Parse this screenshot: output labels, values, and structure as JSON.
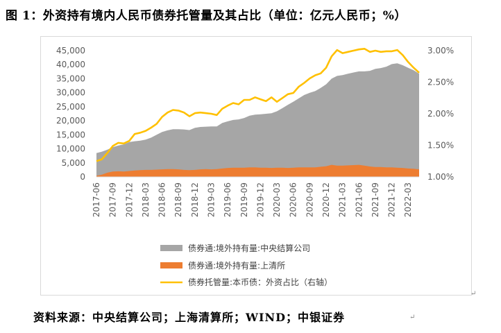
{
  "figure": {
    "title": "图 1：外资持有境内人民币债券托管量及其占比（单位：亿元人民币；%）",
    "source": "资料来源：中央结算公司；上海清算所；WIND；中银证券"
  },
  "chart_data": {
    "type": "area",
    "title": "",
    "xlabel": "",
    "ylabel": "",
    "ylim": [
      0,
      45000
    ],
    "y2lim": [
      0.01,
      0.03
    ],
    "grid": false,
    "legend_position": "bottom",
    "y_ticks": [
      "0",
      "5,000",
      "10,000",
      "15,000",
      "20,000",
      "25,000",
      "30,000",
      "35,000",
      "40,000",
      "45,000"
    ],
    "y2_ticks": [
      "1.00%",
      "1.50%",
      "2.00%",
      "2.50%",
      "3.00%"
    ],
    "x_ticks": [
      "2017-06",
      "2017-09",
      "2017-12",
      "2018-03",
      "2018-06",
      "2018-09",
      "2018-12",
      "2019-03",
      "2019-06",
      "2019-09",
      "2019-12",
      "2020-03",
      "2020-06",
      "2020-09",
      "2020-12",
      "2021-03",
      "2021-06",
      "2021-09",
      "2021-12",
      "2022-03"
    ],
    "x": [
      "2017-06",
      "2017-07",
      "2017-08",
      "2017-09",
      "2017-10",
      "2017-11",
      "2017-12",
      "2018-01",
      "2018-02",
      "2018-03",
      "2018-04",
      "2018-05",
      "2018-06",
      "2018-07",
      "2018-08",
      "2018-09",
      "2018-10",
      "2018-11",
      "2018-12",
      "2019-01",
      "2019-02",
      "2019-03",
      "2019-04",
      "2019-05",
      "2019-06",
      "2019-07",
      "2019-08",
      "2019-09",
      "2019-10",
      "2019-11",
      "2019-12",
      "2020-01",
      "2020-02",
      "2020-03",
      "2020-04",
      "2020-05",
      "2020-06",
      "2020-07",
      "2020-08",
      "2020-09",
      "2020-10",
      "2020-11",
      "2020-12",
      "2021-01",
      "2021-02",
      "2021-03",
      "2021-04",
      "2021-05",
      "2021-06",
      "2021-07",
      "2021-08",
      "2021-09",
      "2021-10",
      "2021-11",
      "2021-12",
      "2022-01",
      "2022-02",
      "2022-03",
      "2022-04",
      "2022-05"
    ],
    "series": [
      {
        "name": "债券通:境外持有量:中央结算公司",
        "type": "area",
        "color": "#a6a6a6",
        "values": [
          8500,
          9000,
          9700,
          10600,
          11200,
          11600,
          12400,
          12700,
          12900,
          13300,
          14000,
          15000,
          16000,
          16600,
          17000,
          17000,
          16900,
          16700,
          17500,
          17800,
          17900,
          18000,
          18000,
          19200,
          19800,
          20300,
          20500,
          21000,
          21800,
          22200,
          22300,
          22500,
          22700,
          23400,
          24500,
          25700,
          26800,
          28000,
          29200,
          30000,
          30600,
          31700,
          33000,
          35000,
          36000,
          36300,
          36800,
          37200,
          37600,
          37600,
          37800,
          38500,
          38800,
          39300,
          40200,
          40500,
          39800,
          38900,
          38000,
          36800
        ]
      },
      {
        "name": "债券通:境外持有量:上清所",
        "type": "area",
        "color": "#ed7d31",
        "values": [
          400,
          800,
          1500,
          1900,
          2000,
          1900,
          2100,
          2300,
          2400,
          2500,
          2500,
          2600,
          2700,
          2800,
          2800,
          2700,
          2500,
          2400,
          2500,
          2700,
          2800,
          2700,
          2800,
          3000,
          3200,
          3300,
          3300,
          3300,
          3400,
          3400,
          3300,
          3300,
          3200,
          3300,
          3300,
          3200,
          3300,
          3400,
          3400,
          3400,
          3400,
          3600,
          3800,
          4300,
          4000,
          4000,
          4100,
          4200,
          4300,
          4000,
          3700,
          3500,
          3500,
          3400,
          3400,
          3300,
          3200,
          3000,
          2900,
          2700
        ]
      },
      {
        "name": "债券托管量:本币债：外资占比（右轴）",
        "type": "line",
        "axis": "right",
        "color": "#ffc000",
        "values": [
          0.0125,
          0.0128,
          0.0138,
          0.0149,
          0.0154,
          0.0153,
          0.0157,
          0.0168,
          0.017,
          0.0173,
          0.0178,
          0.0184,
          0.0195,
          0.0202,
          0.0206,
          0.0205,
          0.0202,
          0.0196,
          0.0201,
          0.0202,
          0.0201,
          0.02,
          0.0198,
          0.0208,
          0.0213,
          0.0217,
          0.0215,
          0.0222,
          0.0222,
          0.0226,
          0.0223,
          0.022,
          0.0226,
          0.0219,
          0.0225,
          0.0231,
          0.0233,
          0.0243,
          0.0249,
          0.0256,
          0.0261,
          0.0264,
          0.0273,
          0.0291,
          0.0301,
          0.0296,
          0.0298,
          0.03,
          0.0302,
          0.0303,
          0.0298,
          0.03,
          0.0298,
          0.0299,
          0.0299,
          0.0301,
          0.0293,
          0.0282,
          0.0273,
          0.0265
        ]
      }
    ]
  }
}
